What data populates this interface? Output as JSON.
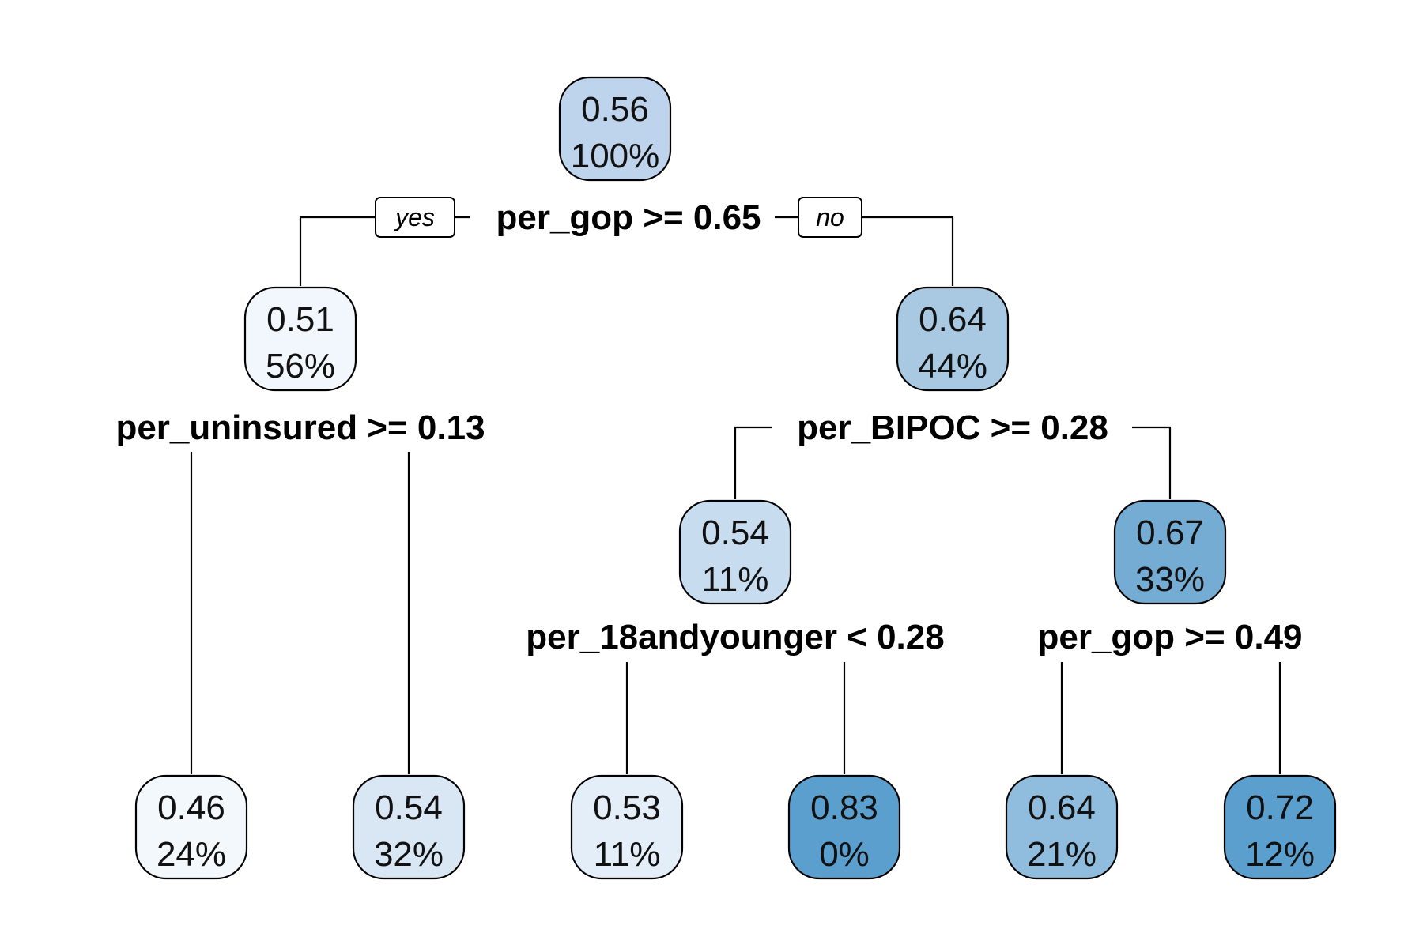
{
  "root": {
    "value": "0.56",
    "percent": "100%",
    "fill": "#bed3ec",
    "split": "per_gop >= 0.65",
    "yes_label": "yes",
    "no_label": "no",
    "left": {
      "value": "0.51",
      "percent": "56%",
      "fill": "#f1f7fd",
      "split": "per_uninsured >= 0.13",
      "left": {
        "value": "0.46",
        "percent": "24%",
        "fill": "#f3f8fd"
      },
      "right": {
        "value": "0.54",
        "percent": "32%",
        "fill": "#d9e7f5"
      }
    },
    "right": {
      "value": "0.64",
      "percent": "44%",
      "fill": "#a9c9e2",
      "split": "per_BIPOC >= 0.28",
      "left": {
        "value": "0.54",
        "percent": "11%",
        "fill": "#c7dcef",
        "split": "per_18andyounger < 0.28",
        "left": {
          "value": "0.53",
          "percent": "11%",
          "fill": "#e3eef8"
        },
        "right": {
          "value": "0.83",
          "percent": "0%",
          "fill": "#5b9fcf"
        }
      },
      "right": {
        "value": "0.67",
        "percent": "33%",
        "fill": "#75acd3",
        "split": "per_gop >= 0.49",
        "left": {
          "value": "0.64",
          "percent": "21%",
          "fill": "#90bddd"
        },
        "right": {
          "value": "0.72",
          "percent": "12%",
          "fill": "#5b9fcf"
        }
      }
    }
  }
}
